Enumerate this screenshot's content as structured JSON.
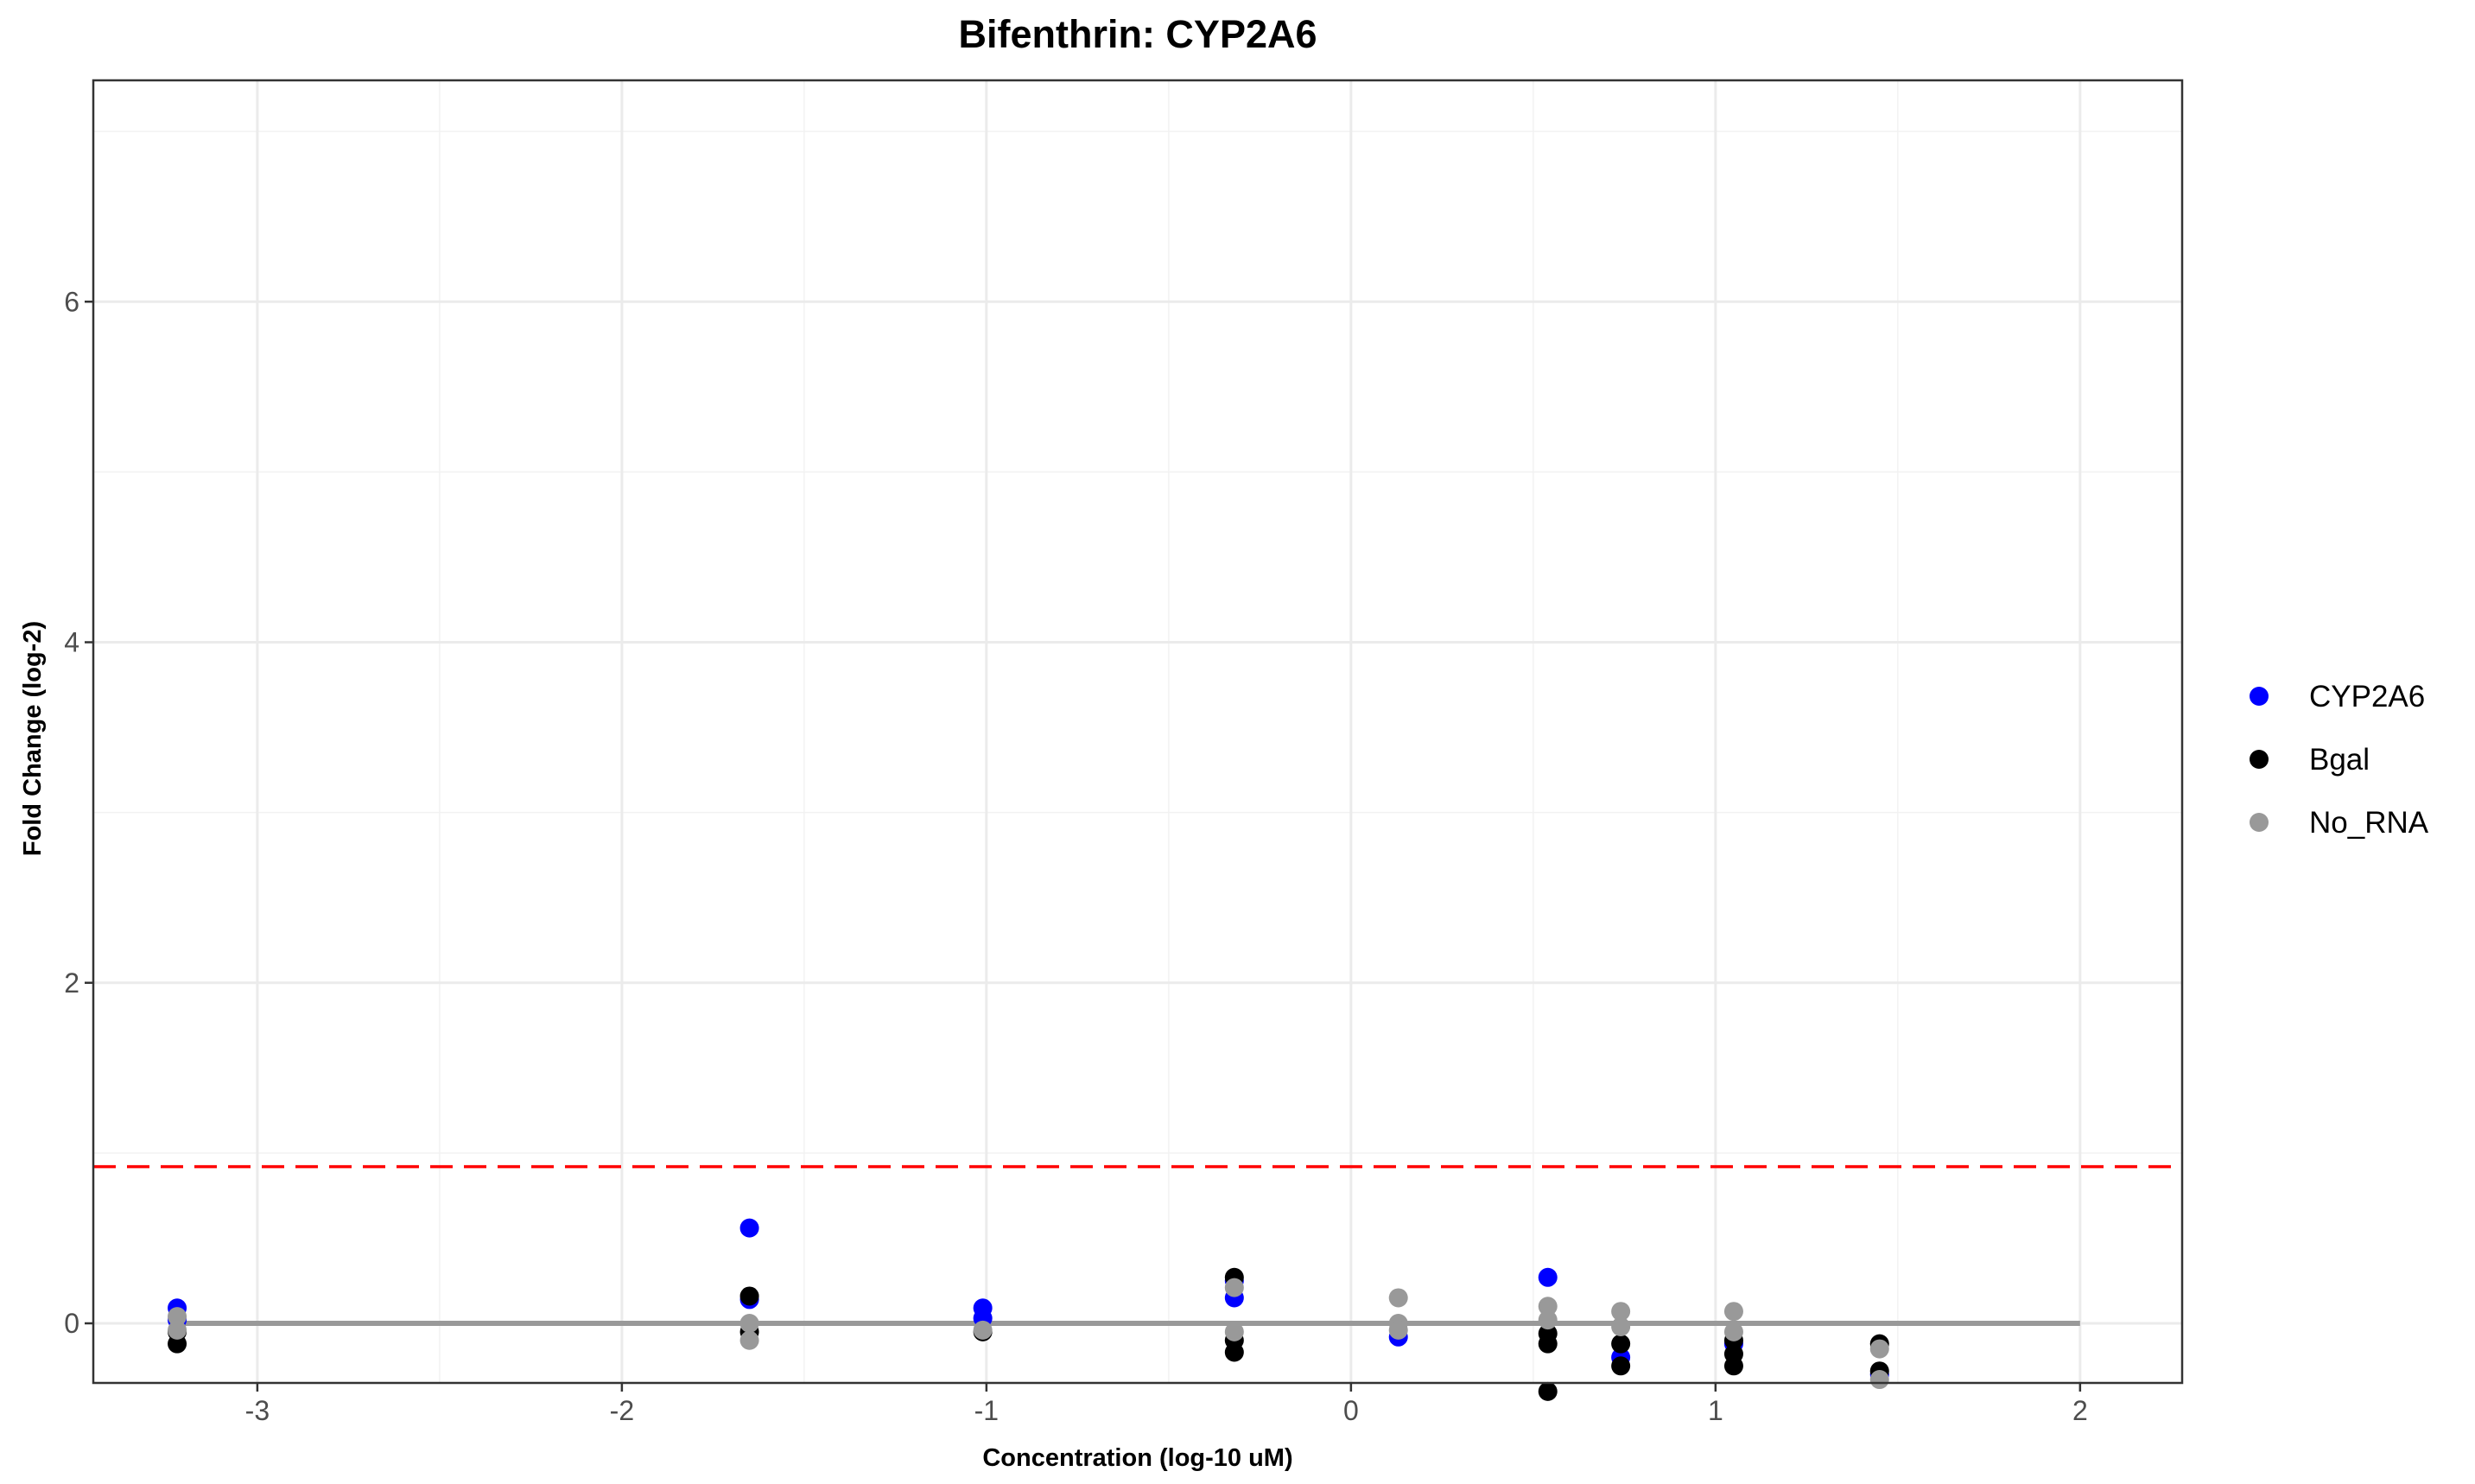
{
  "chart_data": {
    "type": "scatter",
    "title": "Bifenthrin: CYP2A6",
    "xlabel": "Concentration (log-10 uM)",
    "ylabel": "Fold Change (log-2)",
    "xlim": [
      -3.45,
      2.28
    ],
    "ylim": [
      -0.35,
      7.3
    ],
    "x_ticks": [
      -3,
      -2,
      -1,
      0,
      1,
      2
    ],
    "y_ticks": [
      0,
      2,
      4,
      6
    ],
    "x_tick_labels": [
      "-3",
      "-2",
      "-1",
      "0",
      "1",
      "2"
    ],
    "y_tick_labels": [
      "0",
      "2",
      "4",
      "6"
    ],
    "grid": true,
    "legend_position": "right",
    "threshold": {
      "y": 0.92,
      "color": "#ff0000",
      "style": "dashed"
    },
    "baseline": {
      "x": [
        -3.22,
        2.0
      ],
      "y": 0,
      "color": "#999999"
    },
    "series": [
      {
        "name": "CYP2A6",
        "color": "#0000ff",
        "points": [
          [
            -3.22,
            0.09
          ],
          [
            -3.22,
            0.02
          ],
          [
            -1.65,
            0.56
          ],
          [
            -1.65,
            0.14
          ],
          [
            -1.01,
            0.09
          ],
          [
            -1.01,
            0.03
          ],
          [
            -0.32,
            0.15
          ],
          [
            -0.32,
            0.25
          ],
          [
            0.13,
            -0.08
          ],
          [
            0.54,
            0.27
          ],
          [
            0.74,
            -0.2
          ],
          [
            1.05,
            -0.12
          ],
          [
            1.45,
            -0.3
          ]
        ]
      },
      {
        "name": "Bgal",
        "color": "#000000",
        "points": [
          [
            -3.22,
            -0.12
          ],
          [
            -3.22,
            -0.05
          ],
          [
            -1.65,
            0.16
          ],
          [
            -1.65,
            -0.05
          ],
          [
            -1.01,
            -0.05
          ],
          [
            -0.32,
            0.27
          ],
          [
            -0.32,
            -0.17
          ],
          [
            -0.32,
            -0.1
          ],
          [
            0.54,
            -0.12
          ],
          [
            0.54,
            -0.06
          ],
          [
            0.54,
            -0.4
          ],
          [
            0.74,
            -0.25
          ],
          [
            0.74,
            -0.12
          ],
          [
            1.05,
            -0.25
          ],
          [
            1.05,
            -0.18
          ],
          [
            1.05,
            -0.1
          ],
          [
            1.45,
            -0.28
          ],
          [
            1.45,
            -0.12
          ]
        ]
      },
      {
        "name": "No_RNA",
        "color": "#999999",
        "points": [
          [
            -3.22,
            0.04
          ],
          [
            -3.22,
            -0.04
          ],
          [
            -1.65,
            0.0
          ],
          [
            -1.65,
            -0.1
          ],
          [
            -1.01,
            -0.04
          ],
          [
            -0.32,
            0.21
          ],
          [
            -0.32,
            -0.05
          ],
          [
            0.13,
            0.15
          ],
          [
            0.13,
            0.0
          ],
          [
            0.13,
            -0.04
          ],
          [
            0.54,
            0.1
          ],
          [
            0.54,
            0.02
          ],
          [
            0.74,
            0.07
          ],
          [
            0.74,
            -0.02
          ],
          [
            1.05,
            0.07
          ],
          [
            1.05,
            -0.05
          ],
          [
            1.45,
            -0.15
          ],
          [
            1.45,
            -0.33
          ]
        ]
      }
    ]
  }
}
